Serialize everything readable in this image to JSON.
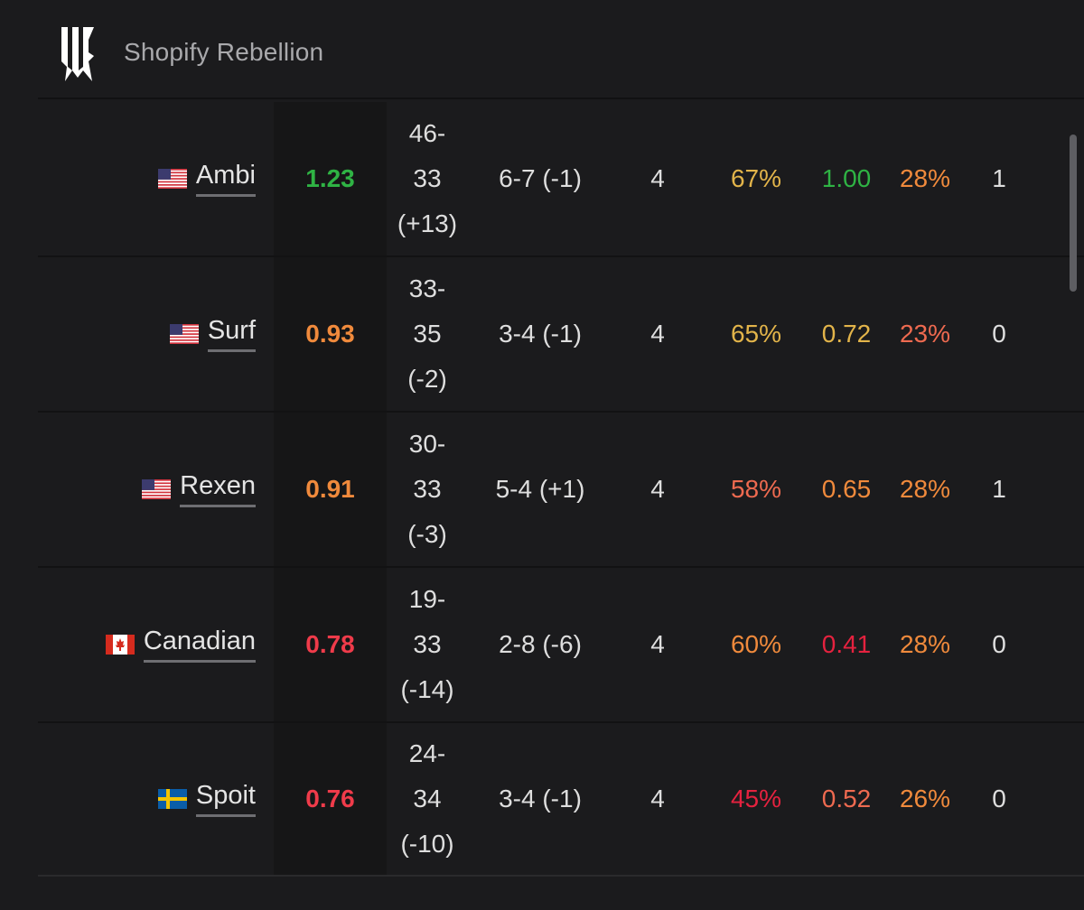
{
  "team": {
    "name": "Shopify Rebellion",
    "logo_icon": "team-logo-icon"
  },
  "colors": {
    "green": "#2fb344",
    "orange": "#f08a3c",
    "red": "#ef3b4a",
    "yellow": "#e2b44a",
    "salmon": "#ee6a50",
    "crimson": "#e5223f"
  },
  "players": [
    {
      "flag": "us-flag-icon",
      "name": "Ambi",
      "rating": "1.23",
      "kd_line1": "46-",
      "kd_line2": "33",
      "kd_line3": "(+13)",
      "entry": "6-7 (-1)",
      "maps": "4",
      "kast": "67%",
      "impact": "1.00",
      "hs": "28%",
      "clutches": "1"
    },
    {
      "flag": "us-flag-icon",
      "name": "Surf",
      "rating": "0.93",
      "kd_line1": "33-",
      "kd_line2": "35",
      "kd_line3": "(-2)",
      "entry": "3-4 (-1)",
      "maps": "4",
      "kast": "65%",
      "impact": "0.72",
      "hs": "23%",
      "clutches": "0"
    },
    {
      "flag": "us-flag-icon",
      "name": "Rexen",
      "rating": "0.91",
      "kd_line1": "30-",
      "kd_line2": "33",
      "kd_line3": "(-3)",
      "entry": "5-4 (+1)",
      "maps": "4",
      "kast": "58%",
      "impact": "0.65",
      "hs": "28%",
      "clutches": "1"
    },
    {
      "flag": "ca-flag-icon",
      "name": "Canadian",
      "rating": "0.78",
      "kd_line1": "19-",
      "kd_line2": "33",
      "kd_line3": "(-14)",
      "entry": "2-8 (-6)",
      "maps": "4",
      "kast": "60%",
      "impact": "0.41",
      "hs": "28%",
      "clutches": "0"
    },
    {
      "flag": "se-flag-icon",
      "name": "Spoit",
      "rating": "0.76",
      "kd_line1": "24-",
      "kd_line2": "34",
      "kd_line3": "(-10)",
      "entry": "3-4 (-1)",
      "maps": "4",
      "kast": "45%",
      "impact": "0.52",
      "hs": "26%",
      "clutches": "0"
    }
  ]
}
